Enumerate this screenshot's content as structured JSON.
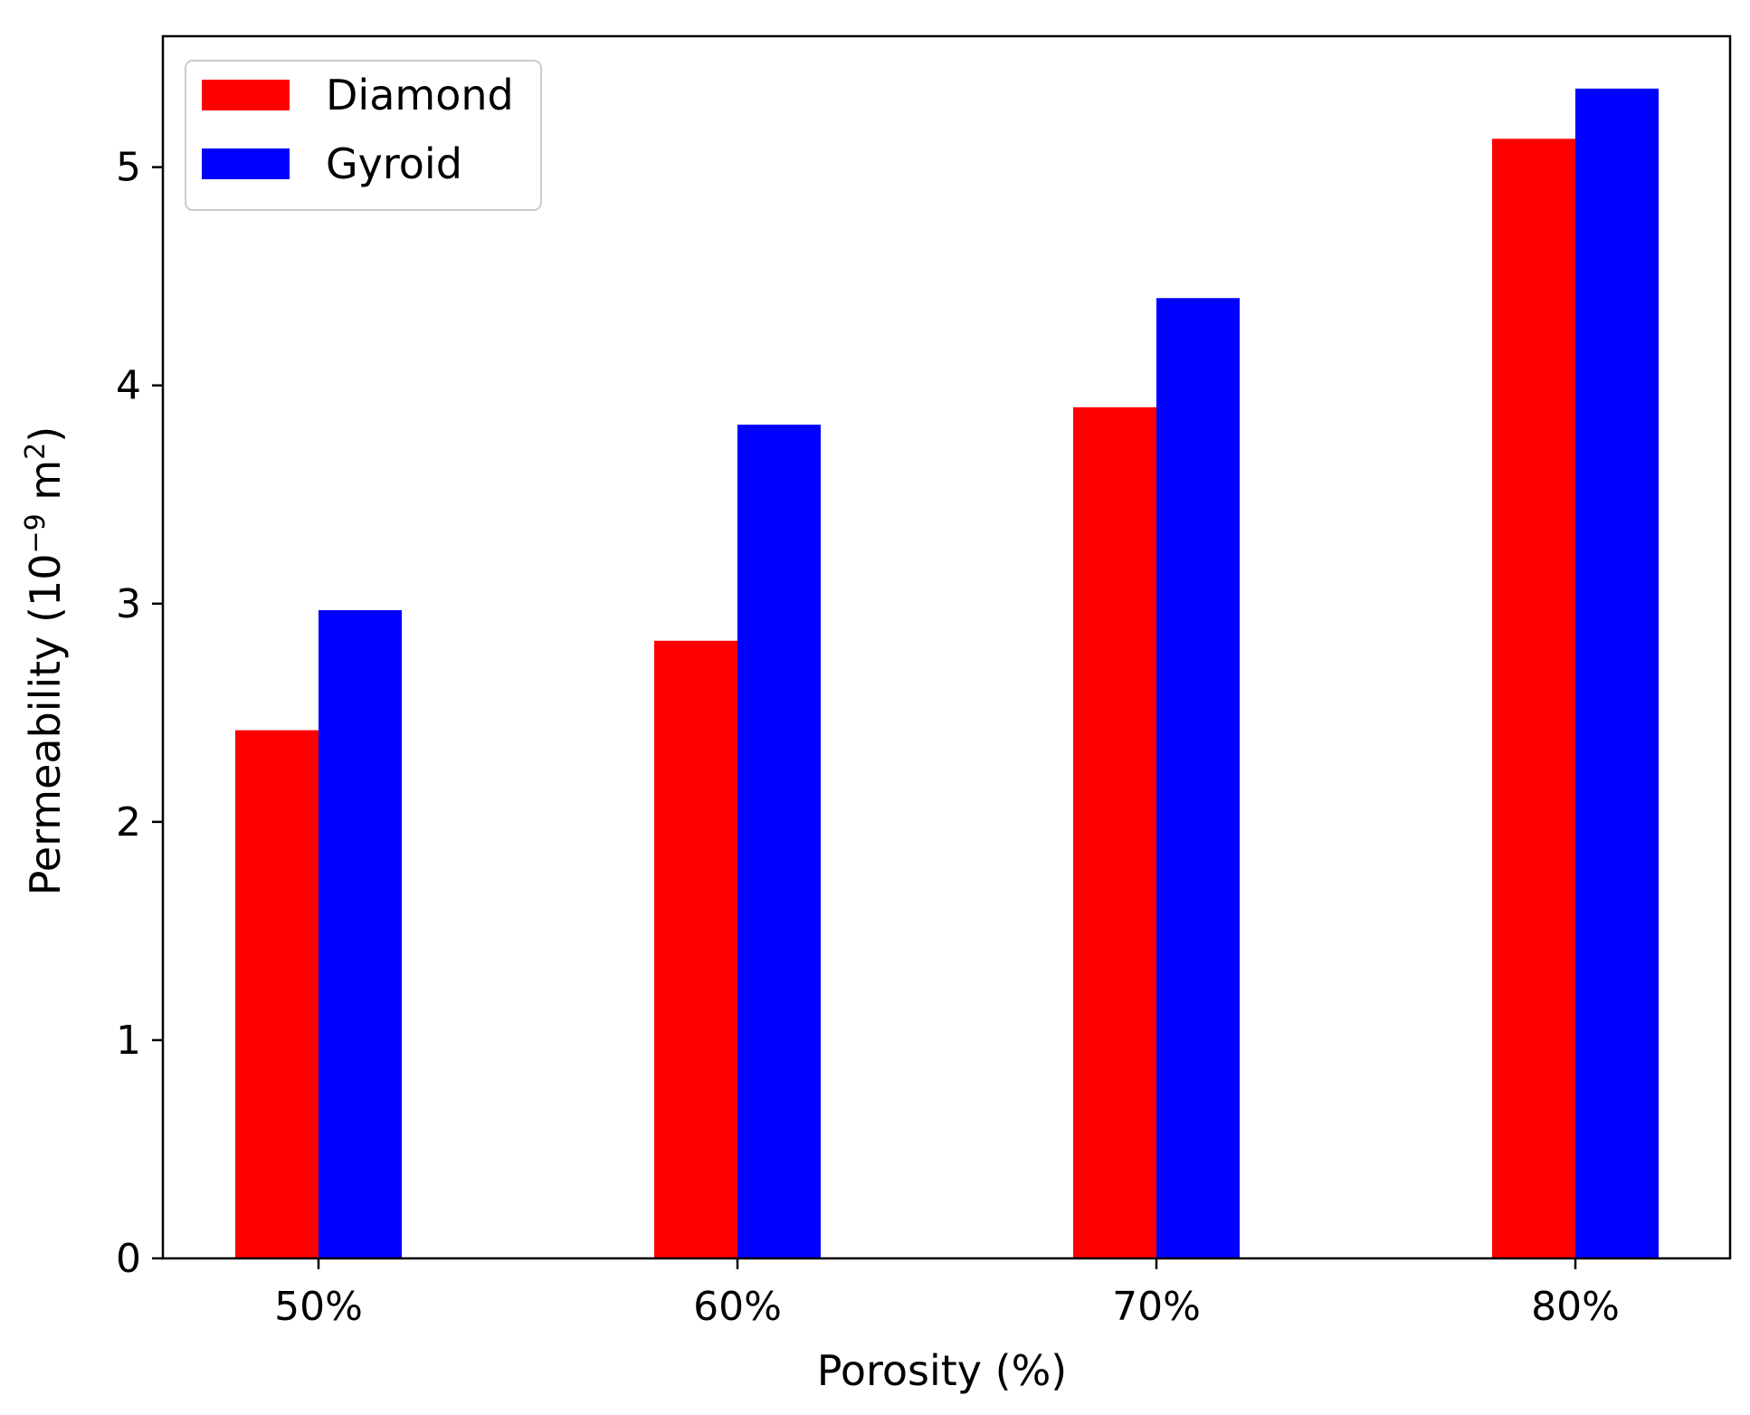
{
  "chart_data": {
    "type": "bar",
    "categories": [
      "50%",
      "60%",
      "70%",
      "80%"
    ],
    "series": [
      {
        "name": "Diamond",
        "color": "#ff0000",
        "values": [
          2.42,
          2.83,
          3.9,
          5.13
        ]
      },
      {
        "name": "Gyroid",
        "color": "#0000ff",
        "values": [
          2.97,
          3.82,
          4.4,
          5.36
        ]
      }
    ],
    "xlabel": "Porosity (%)",
    "ylabel_main": "Permeability (10",
    "ylabel_exp1": "−9",
    "ylabel_mid": " m",
    "ylabel_exp2": "2",
    "ylabel_end": ")",
    "ylim": [
      0,
      5.6
    ],
    "yticks": [
      0,
      1,
      2,
      3,
      4,
      5
    ],
    "ytick_labels": [
      "0",
      "1",
      "2",
      "3",
      "4",
      "5"
    ],
    "legend_position": "top-left",
    "grid": false
  }
}
